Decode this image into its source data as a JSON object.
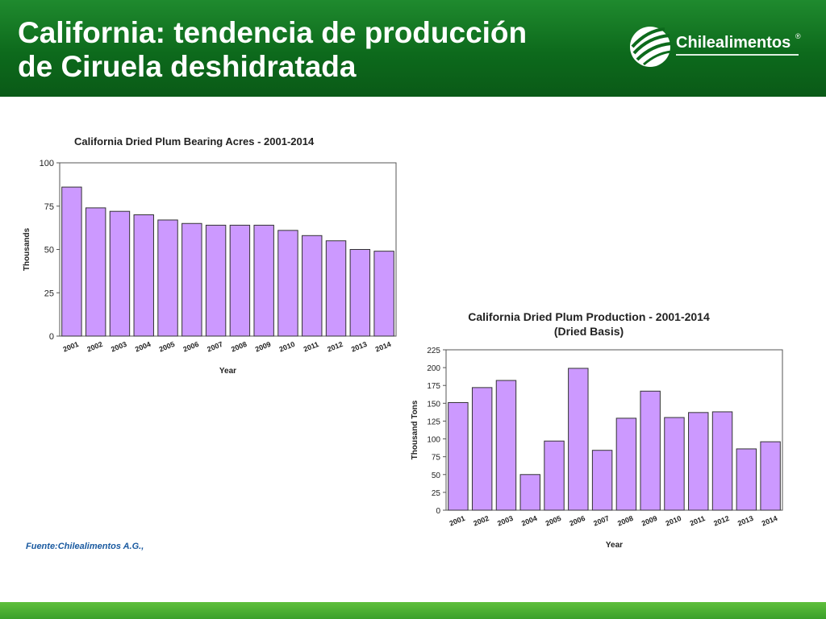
{
  "slide": {
    "title_line1": "California: tendencia de producción",
    "title_line2": "de Ciruela deshidratada",
    "logo_text": "Chilealimentos",
    "logo_mark": "®",
    "source": "Fuente:Chilealimentos A.G.,"
  },
  "colors": {
    "header_green": "#0d6a1c",
    "bar_fill": "#cc99ff",
    "bar_stroke": "#333333",
    "footer_green": "#4cb033",
    "source_text": "#1a5aa0"
  },
  "chart_data": [
    {
      "type": "bar",
      "title": "California Dried Plum Bearing Acres - 2001-2014",
      "subtitle": "",
      "xlabel": "Year",
      "ylabel": "Thousands",
      "ylim": [
        0,
        100
      ],
      "yticks": [
        0,
        25,
        50,
        75,
        100
      ],
      "grid": false,
      "legend": "none",
      "categories": [
        "2001",
        "2002",
        "2003",
        "2004",
        "2005",
        "2006",
        "2007",
        "2008",
        "2009",
        "2010",
        "2011",
        "2012",
        "2013",
        "2014"
      ],
      "values": [
        86,
        74,
        72,
        70,
        67,
        65,
        64,
        64,
        64,
        61,
        58,
        55,
        50,
        49
      ]
    },
    {
      "type": "bar",
      "title": "California Dried Plum Production - 2001-2014",
      "subtitle": "(Dried Basis)",
      "xlabel": "Year",
      "ylabel": "Thousand Tons",
      "ylim": [
        0,
        225
      ],
      "yticks": [
        0,
        25,
        50,
        75,
        100,
        125,
        150,
        175,
        200,
        225
      ],
      "grid": false,
      "legend": "none",
      "categories": [
        "2001",
        "2002",
        "2003",
        "2004",
        "2005",
        "2006",
        "2007",
        "2008",
        "2009",
        "2010",
        "2011",
        "2012",
        "2013",
        "2014"
      ],
      "values": [
        151,
        172,
        182,
        50,
        97,
        199,
        84,
        129,
        167,
        130,
        137,
        138,
        86,
        96
      ]
    }
  ]
}
